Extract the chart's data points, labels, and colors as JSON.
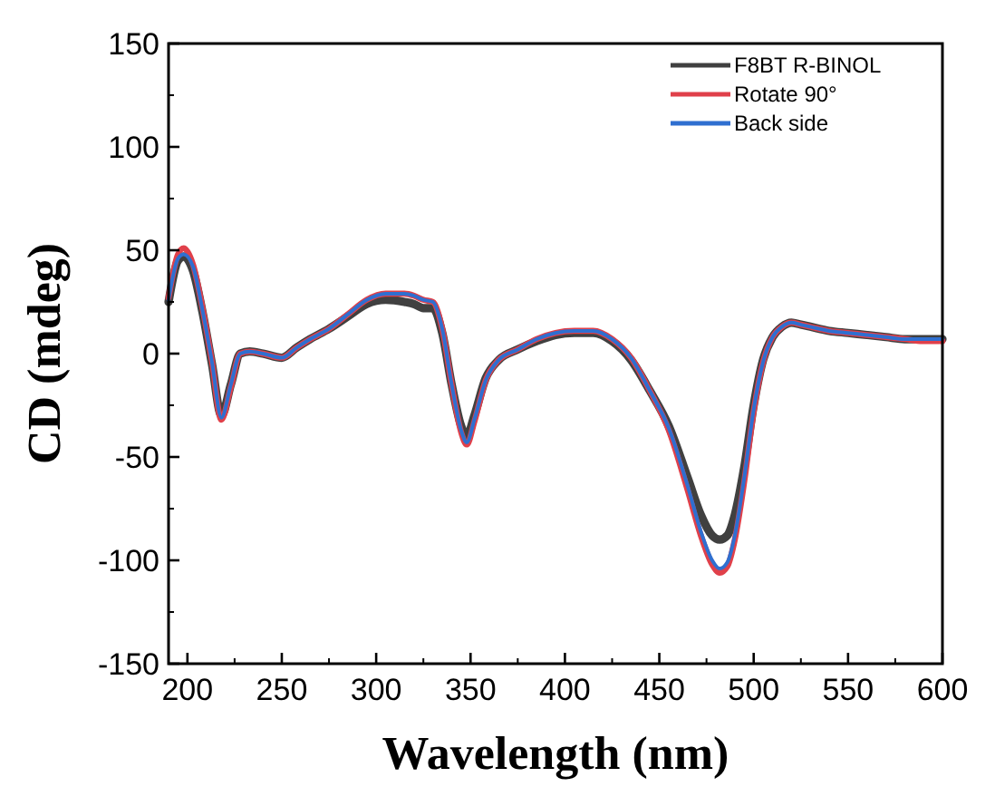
{
  "chart_data": {
    "type": "line",
    "xlabel": "Wavelength (nm)",
    "ylabel": "CD (mdeg)",
    "x": [
      190,
      195,
      198,
      203,
      208,
      213,
      218,
      223,
      228,
      233,
      240,
      250,
      258,
      265,
      275,
      285,
      295,
      305,
      315,
      320,
      325,
      330,
      335,
      340,
      345,
      348,
      352,
      358,
      365,
      375,
      385,
      395,
      405,
      415,
      425,
      435,
      445,
      455,
      465,
      472,
      478,
      482,
      486,
      490,
      495,
      500,
      505,
      510,
      515,
      520,
      525,
      530,
      540,
      550,
      560,
      570,
      580,
      590,
      600
    ],
    "series": [
      {
        "name": "F8BT R-BINOL",
        "color": "#404040",
        "values": [
          25,
          45,
          47,
          40,
          20,
          -5,
          -30,
          -15,
          0,
          1,
          0,
          -2,
          3,
          7,
          12,
          18,
          24,
          26,
          25,
          24,
          22,
          22,
          10,
          -15,
          -35,
          -40,
          -30,
          -12,
          -3,
          2,
          6,
          9,
          10,
          10,
          6,
          -3,
          -18,
          -35,
          -60,
          -78,
          -88,
          -90,
          -88,
          -78,
          -55,
          -25,
          -3,
          8,
          13,
          15,
          14,
          13,
          11,
          10,
          9,
          8,
          7,
          7,
          7
        ]
      },
      {
        "name": "Rotate 90°",
        "color": "#e0404a",
        "values": [
          27,
          48,
          51,
          43,
          22,
          -4,
          -32,
          -16,
          0,
          1,
          0,
          -2,
          3,
          7,
          12,
          19,
          26,
          29,
          29,
          28,
          26,
          25,
          12,
          -15,
          -38,
          -44,
          -33,
          -13,
          -3,
          2,
          7,
          10,
          11,
          11,
          7,
          -2,
          -18,
          -37,
          -66,
          -88,
          -102,
          -106,
          -103,
          -90,
          -62,
          -28,
          -4,
          8,
          13,
          15,
          14,
          13,
          11,
          10,
          9,
          8,
          7,
          6,
          6
        ]
      },
      {
        "name": "Back side",
        "color": "#2f6fd0",
        "values": [
          26,
          46,
          48,
          42,
          21,
          -4,
          -31,
          -15,
          0,
          1,
          0,
          -2,
          3,
          7,
          12,
          19,
          26,
          29,
          29,
          28,
          26,
          25,
          12,
          -15,
          -37,
          -43,
          -32,
          -13,
          -3,
          2,
          7,
          10,
          11,
          11,
          7,
          -2,
          -18,
          -36,
          -64,
          -86,
          -100,
          -104,
          -101,
          -88,
          -60,
          -27,
          -4,
          8,
          13,
          15,
          14,
          13,
          11,
          10,
          9,
          8,
          7,
          7,
          7
        ]
      }
    ],
    "xlim": [
      190,
      600
    ],
    "xticks": [
      200,
      250,
      300,
      350,
      400,
      450,
      500,
      550,
      600
    ],
    "ylim": [
      -150,
      150
    ],
    "yticks": [
      -150,
      -100,
      -50,
      0,
      50,
      100,
      150
    ],
    "legend": "top right",
    "grid": false,
    "marker": "none",
    "line_style": "solid"
  }
}
